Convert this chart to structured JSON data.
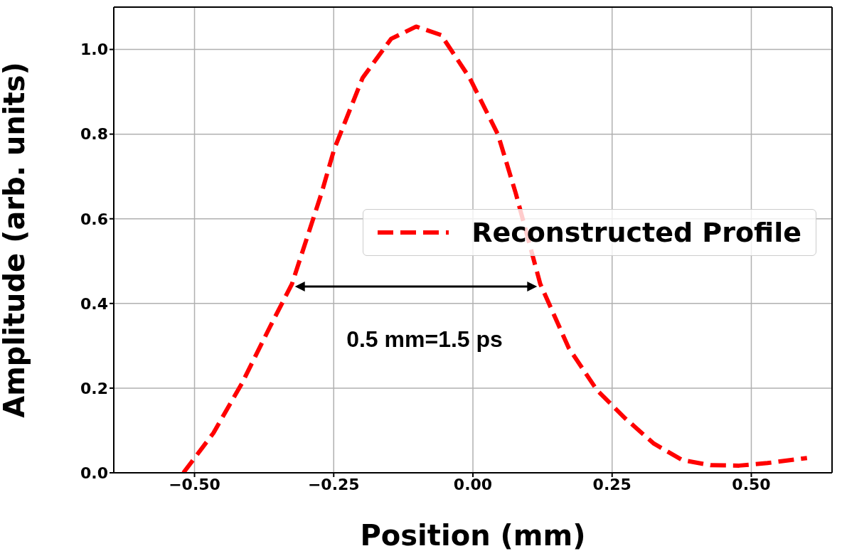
{
  "chart_data": {
    "type": "line",
    "xlabel": "Position (mm)",
    "ylabel": "Amplitude (arb. units)",
    "xlim": [
      -0.645,
      0.645
    ],
    "ylim": [
      0,
      1.1
    ],
    "xticks": [
      {
        "value": -0.5,
        "label": "−0.50"
      },
      {
        "value": -0.25,
        "label": "−0.25"
      },
      {
        "value": 0,
        "label": "0.00"
      },
      {
        "value": 0.25,
        "label": "0.25"
      },
      {
        "value": 0.5,
        "label": "0.50"
      }
    ],
    "yticks": [
      {
        "value": 0,
        "label": "0.0"
      },
      {
        "value": 0.2,
        "label": "0.2"
      },
      {
        "value": 0.4,
        "label": "0.4"
      },
      {
        "value": 0.6,
        "label": "0.6"
      },
      {
        "value": 0.8,
        "label": "0.8"
      },
      {
        "value": 1.0,
        "label": "1.0"
      }
    ],
    "grid": true,
    "legend": "right",
    "marker": "none",
    "line_style": "dashed",
    "annotations": [
      "0.5 mm=1.5 ps"
    ],
    "series": [
      {
        "name": "Reconstructed Profile",
        "color": "#ff0000",
        "x": [
          -0.52,
          -0.466,
          -0.415,
          -0.364,
          -0.325,
          -0.272,
          -0.249,
          -0.198,
          -0.147,
          -0.102,
          -0.057,
          -0.006,
          0.045,
          0.077,
          0.121,
          0.172,
          0.223,
          0.274,
          0.325,
          0.376,
          0.427,
          0.478,
          0.529,
          0.6
        ],
        "values": [
          0,
          0.094,
          0.211,
          0.346,
          0.446,
          0.66,
          0.765,
          0.933,
          1.025,
          1.054,
          1.034,
          0.933,
          0.799,
          0.66,
          0.446,
          0.295,
          0.195,
          0.128,
          0.069,
          0.03,
          0.018,
          0.017,
          0.023,
          0.035
        ]
      }
    ]
  }
}
